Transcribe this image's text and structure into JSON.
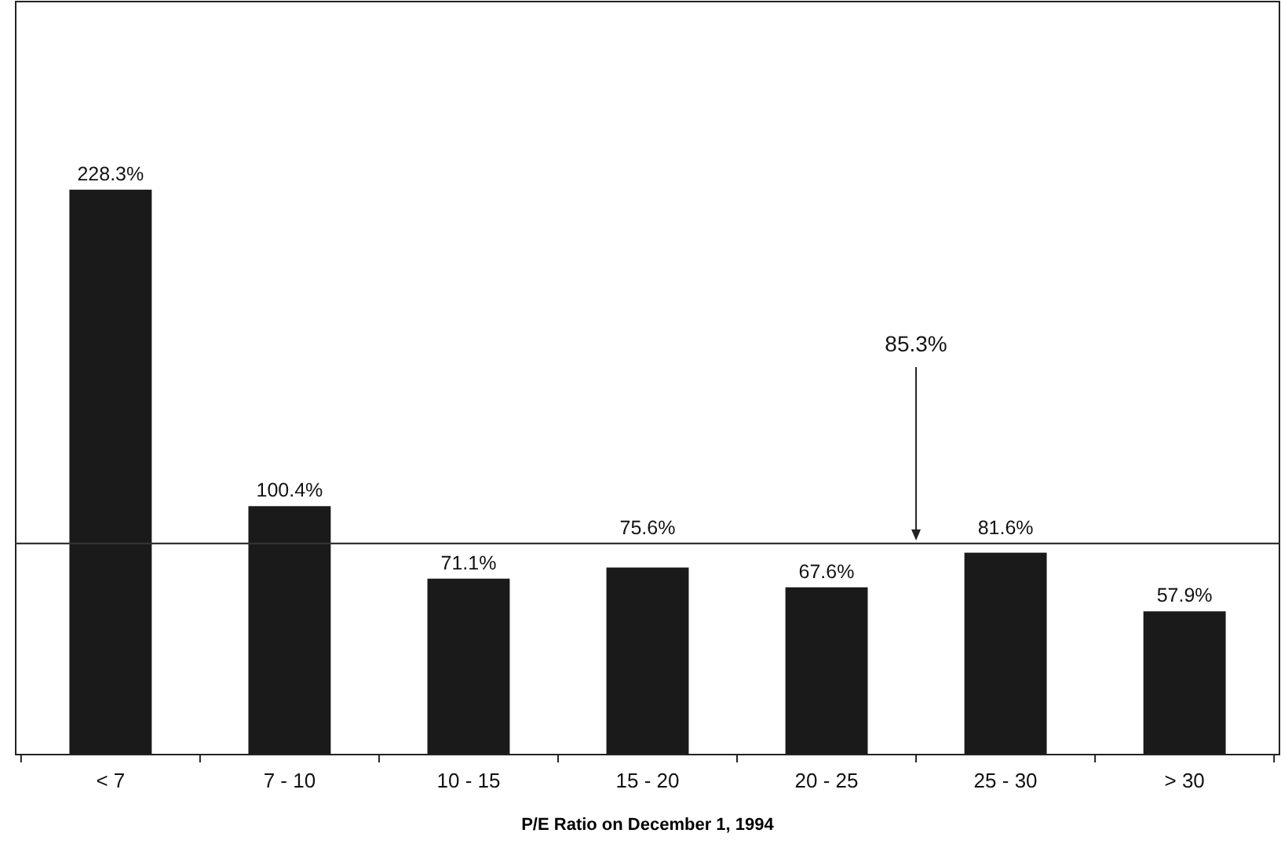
{
  "chart_data": {
    "type": "bar",
    "xlabel": "P/E Ratio on December 1, 1994",
    "categories": [
      "< 7",
      "7 - 10",
      "10 - 15",
      "15 - 20",
      "20 - 25",
      "25 - 30",
      "> 30"
    ],
    "values": [
      228.3,
      100.4,
      71.1,
      75.6,
      67.6,
      81.6,
      57.9
    ],
    "value_labels": [
      "228.3%",
      "100.4%",
      "71.1%",
      "75.6%",
      "67.6%",
      "81.6%",
      "57.9%"
    ],
    "color": "#1a1a1a",
    "ref_lines": [
      {
        "axis": "y",
        "value": 85.3,
        "label": "85.3%",
        "color": "#333333"
      }
    ]
  }
}
